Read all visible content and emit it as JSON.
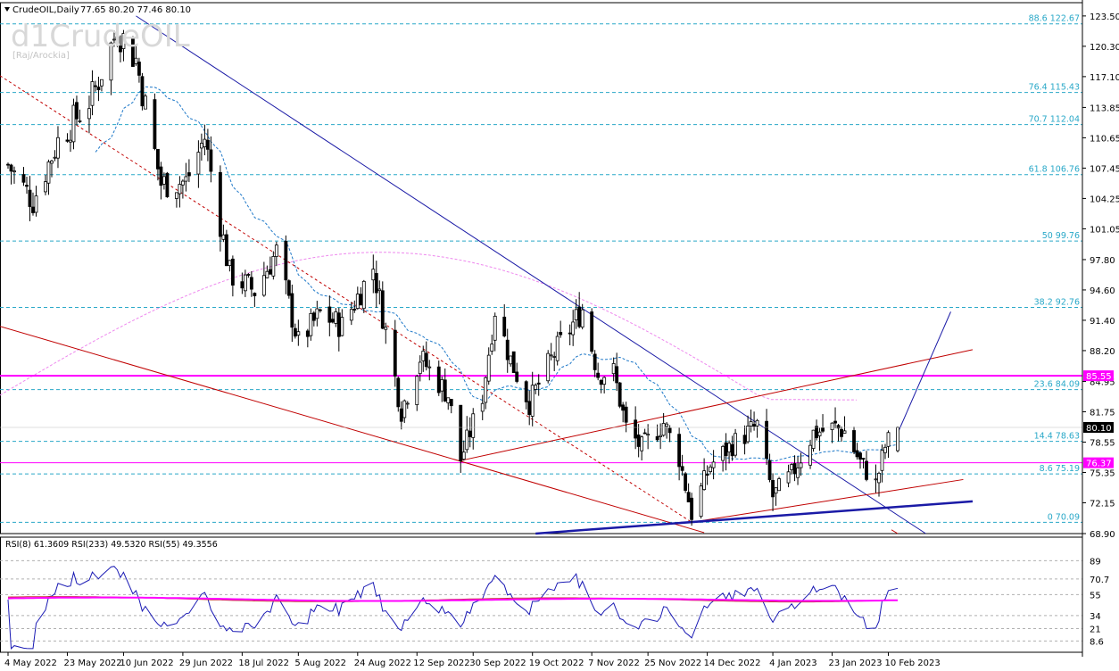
{
  "header": {
    "symbol": "CrudeOIL,Daily",
    "ohlc": "77.65 80.20 77.46 80.10",
    "watermark": "d1CrudeOIL",
    "author": "[Raj/Arockia]"
  },
  "colors": {
    "bull_body": "#000000",
    "bear_body": "#ffffff",
    "fib": "#29a8c8",
    "magenta": "#ff00ff",
    "channel_red": "#c00000",
    "trend_blue": "#1a1aa6",
    "ma_short": "#1e78c8",
    "ma_long": "#ee88ee",
    "rsi_fast": "#1a1ab4",
    "rsi_mid": "#c83232",
    "rsi_slow": "#ff00ff"
  },
  "chart_data": [
    {
      "type": "candlestick",
      "title": "CrudeOIL,Daily",
      "ylim": [
        68.9,
        124.9
      ],
      "y_ticks": [
        "123.50",
        "120.30",
        "117.10",
        "113.85",
        "110.65",
        "107.45",
        "104.25",
        "101.05",
        "97.80",
        "94.60",
        "91.40",
        "88.20",
        "84.95",
        "81.75",
        "78.55",
        "75.35",
        "72.15",
        "68.90"
      ],
      "x_ticks": [
        "4 May 2022",
        "23 May 2022",
        "10 Jun 2022",
        "29 Jun 2022",
        "18 Jul 2022",
        "5 Aug 2022",
        "24 Aug 2022",
        "12 Sep 2022",
        "30 Sep 2022",
        "19 Oct 2022",
        "7 Nov 2022",
        "25 Nov 2022",
        "14 Dec 2022",
        "4 Jan 2023",
        "23 Jan 2023",
        "10 Feb 2023"
      ],
      "anchors": [
        {
          "date": "2022-05-04",
          "close": 107.8
        },
        {
          "date": "2022-05-12",
          "close": 104.0
        },
        {
          "date": "2022-05-20",
          "close": 110.3
        },
        {
          "date": "2022-05-31",
          "close": 115.0
        },
        {
          "date": "2022-06-08",
          "close": 122.1
        },
        {
          "date": "2022-06-14",
          "close": 118.9
        },
        {
          "date": "2022-06-22",
          "close": 105.8
        },
        {
          "date": "2022-06-30",
          "close": 106.0
        },
        {
          "date": "2022-07-06",
          "close": 110.7
        },
        {
          "date": "2022-07-14",
          "close": 96.3
        },
        {
          "date": "2022-07-22",
          "close": 94.5
        },
        {
          "date": "2022-07-29",
          "close": 98.6
        },
        {
          "date": "2022-08-05",
          "close": 89.0
        },
        {
          "date": "2022-08-12",
          "close": 92.1
        },
        {
          "date": "2022-08-19",
          "close": 90.8
        },
        {
          "date": "2022-08-29",
          "close": 97.0
        },
        {
          "date": "2022-09-07",
          "close": 81.9
        },
        {
          "date": "2022-09-13",
          "close": 87.5
        },
        {
          "date": "2022-09-22",
          "close": 83.5
        },
        {
          "date": "2022-09-26",
          "close": 76.7
        },
        {
          "date": "2022-10-03",
          "close": 83.5
        },
        {
          "date": "2022-10-07",
          "close": 92.6
        },
        {
          "date": "2022-10-12",
          "close": 87.2
        },
        {
          "date": "2022-10-18",
          "close": 82.7
        },
        {
          "date": "2022-10-26",
          "close": 87.9
        },
        {
          "date": "2022-11-04",
          "close": 92.6
        },
        {
          "date": "2022-11-09",
          "close": 85.8
        },
        {
          "date": "2022-11-14",
          "close": 85.9
        },
        {
          "date": "2022-11-18",
          "close": 80.1
        },
        {
          "date": "2022-11-23",
          "close": 77.9
        },
        {
          "date": "2022-11-30",
          "close": 80.6
        },
        {
          "date": "2022-12-05",
          "close": 76.9
        },
        {
          "date": "2022-12-09",
          "close": 71.0
        },
        {
          "date": "2022-12-15",
          "close": 76.1
        },
        {
          "date": "2022-12-22",
          "close": 78.3
        },
        {
          "date": "2022-12-30",
          "close": 80.3
        },
        {
          "date": "2023-01-04",
          "close": 72.8
        },
        {
          "date": "2023-01-10",
          "close": 75.1
        },
        {
          "date": "2023-01-17",
          "close": 79.5
        },
        {
          "date": "2023-01-24",
          "close": 80.1
        },
        {
          "date": "2023-01-27",
          "close": 79.7
        },
        {
          "date": "2023-02-01",
          "close": 76.4
        },
        {
          "date": "2023-02-06",
          "close": 74.1
        },
        {
          "date": "2023-02-09",
          "close": 78.1
        },
        {
          "date": "2023-02-13",
          "close": 80.1
        }
      ],
      "last": {
        "open": 77.65,
        "high": 80.2,
        "low": 77.46,
        "close": 80.1
      },
      "fib_levels": [
        {
          "label": "88.6 122.67",
          "value": 122.67
        },
        {
          "label": "76.4 115.43",
          "value": 115.43
        },
        {
          "label": "70.7 112.04",
          "value": 112.04
        },
        {
          "label": "61.8 106.76",
          "value": 106.76
        },
        {
          "label": "50 99.76",
          "value": 99.76
        },
        {
          "label": "38.2 92.76",
          "value": 92.76
        },
        {
          "label": "23.6 84.09",
          "value": 84.09
        },
        {
          "label": "14.4 78.63",
          "value": 78.63
        },
        {
          "label": "8.6 75.19",
          "value": 75.19
        },
        {
          "label": "0 70.09",
          "value": 70.09
        }
      ],
      "horizontal_lines": [
        {
          "label": "85.55",
          "value": 85.55
        },
        {
          "label": "76.37",
          "value": 76.37
        }
      ],
      "current_price_label": "80.10",
      "trendlines": [
        {
          "name": "downtrend",
          "from": [
            "2022-06-14",
            123.5
          ],
          "to": [
            "2023-02-22",
            68.9
          ]
        },
        {
          "name": "channel-upper",
          "from": [
            "2022-09-26",
            76.6
          ],
          "to": [
            "2023-03-09",
            88.3
          ]
        },
        {
          "name": "channel-lower",
          "from": [
            "2022-12-09",
            70.1
          ],
          "to": [
            "2023-03-06",
            74.6
          ]
        },
        {
          "name": "long-red",
          "from": [
            "2022-04-30",
            90.9
          ],
          "to": [
            "2022-12-13",
            69.0
          ]
        },
        {
          "name": "dashed-red",
          "from": [
            "2022-04-30",
            117.5
          ],
          "to": [
            "2022-12-09",
            70.1
          ]
        },
        {
          "name": "blue-support",
          "from": [
            "2022-10-20",
            68.9
          ],
          "to": [
            "2023-03-09",
            72.3
          ]
        },
        {
          "name": "projection",
          "from": [
            "2023-02-13",
            79.5
          ],
          "to": [
            "2023-03-02",
            92.3
          ]
        }
      ]
    },
    {
      "type": "line",
      "title": "RSI(8) 61.3609 RSI(233) 49.5320 RSI(55) 49.3556",
      "ylim": [
        0,
        100
      ],
      "y_ticks": [
        "89",
        "70.7",
        "55",
        "34",
        "21",
        "8.6"
      ],
      "series": [
        {
          "name": "RSI(8)",
          "last": 61.3609
        },
        {
          "name": "RSI(233)",
          "last": 49.532
        },
        {
          "name": "RSI(55)",
          "last": 49.3556
        }
      ]
    }
  ]
}
